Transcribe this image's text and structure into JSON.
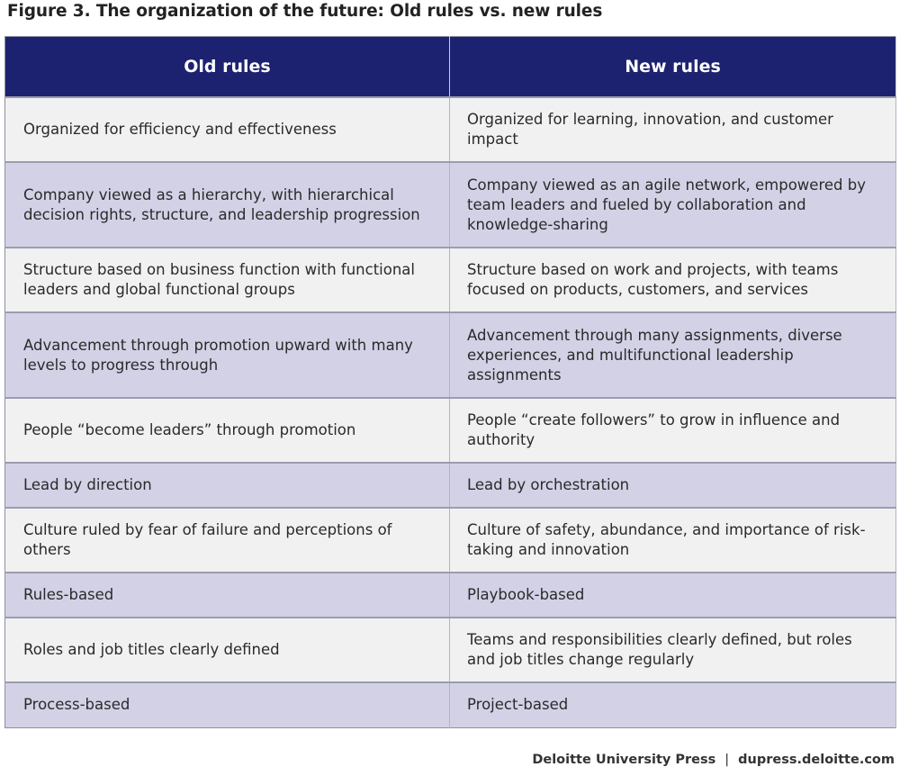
{
  "figure": {
    "title": "Figure 3. The organization of the future: Old rules vs. new rules"
  },
  "table": {
    "headers": [
      "Old rules",
      "New rules"
    ],
    "rows": [
      [
        "Organized for efficiency and effectiveness",
        "Organized for learning, innovation, and customer impact"
      ],
      [
        "Company viewed as a hierarchy, with hierarchical decision rights, structure, and leadership progression",
        "Company viewed as an agile network, empowered by team leaders and fueled by collaboration and knowledge-sharing"
      ],
      [
        "Structure based on business function with functional leaders and global functional groups",
        "Structure based on work and projects, with teams focused on products, customers, and services"
      ],
      [
        "Advancement through promotion upward with many levels to progress through",
        "Advancement through many assignments, diverse experiences, and multifunctional leadership assignments"
      ],
      [
        "People “become leaders” through promotion",
        "People “create followers” to grow in influence and authority"
      ],
      [
        "Lead by direction",
        "Lead by orchestration"
      ],
      [
        "Culture ruled by fear of failure and perceptions of others",
        "Culture of safety, abundance, and importance of risk-taking and innovation"
      ],
      [
        "Rules-based",
        "Playbook-based"
      ],
      [
        "Roles and job titles clearly defined",
        "Teams and responsibilities clearly defined, but roles and job titles change regularly"
      ],
      [
        "Process-based",
        "Project-based"
      ]
    ]
  },
  "footer": {
    "publisher": "Deloitte University Press",
    "separator": "|",
    "site": "dupress.deloitte.com"
  },
  "colors": {
    "header_bg": "#1d2270",
    "row_odd": "#f1f1f1",
    "row_even": "#d3d1e6"
  }
}
